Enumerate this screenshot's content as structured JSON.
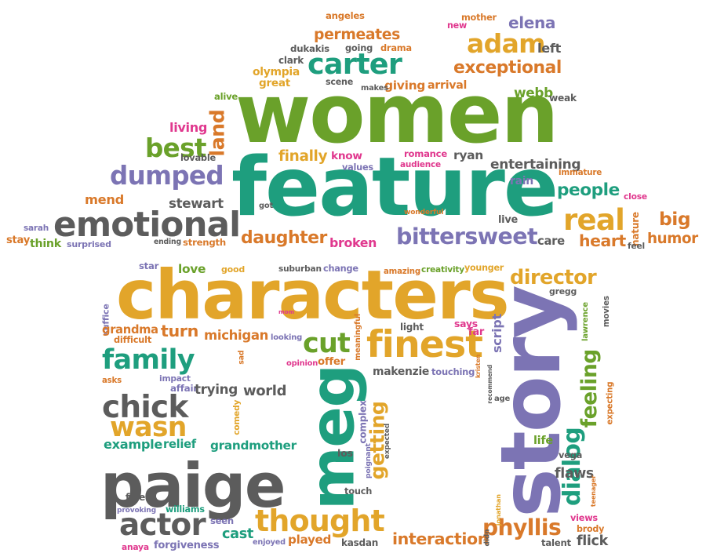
{
  "palette": {
    "green": "#6aa12a",
    "orange": "#d9792a",
    "yellow": "#e2a52a",
    "teal": "#1e9e7e",
    "gray": "#5c5c5c",
    "purple": "#7c74b4",
    "pink": "#e0388e"
  },
  "words": [
    {
      "text": "women",
      "c": "green"
    },
    {
      "text": "feature",
      "c": "teal"
    },
    {
      "text": "characters",
      "c": "yellow"
    },
    {
      "text": "paige",
      "c": "gray"
    },
    {
      "text": "story",
      "c": "purple"
    },
    {
      "text": "meg",
      "c": "teal"
    },
    {
      "text": "emotional",
      "c": "gray"
    },
    {
      "text": "carter",
      "c": "teal"
    },
    {
      "text": "adam",
      "c": "yellow"
    },
    {
      "text": "exceptional",
      "c": "orange"
    },
    {
      "text": "dumped",
      "c": "purple"
    },
    {
      "text": "best",
      "c": "green"
    },
    {
      "text": "land",
      "c": "orange"
    },
    {
      "text": "real",
      "c": "yellow"
    },
    {
      "text": "finest",
      "c": "yellow"
    },
    {
      "text": "thought",
      "c": "yellow"
    },
    {
      "text": "family",
      "c": "teal"
    },
    {
      "text": "chick",
      "c": "gray"
    },
    {
      "text": "wasn",
      "c": "yellow"
    },
    {
      "text": "actor",
      "c": "gray"
    },
    {
      "text": "cut",
      "c": "green"
    },
    {
      "text": "director",
      "c": "yellow"
    },
    {
      "text": "feeling",
      "c": "green"
    },
    {
      "text": "getting",
      "c": "yellow"
    },
    {
      "text": "bittersweet",
      "c": "purple"
    },
    {
      "text": "daughter",
      "c": "orange"
    },
    {
      "text": "people",
      "c": "teal"
    },
    {
      "text": "entertaining",
      "c": "gray"
    },
    {
      "text": "permeates",
      "c": "orange"
    },
    {
      "text": "phyllis",
      "c": "orange"
    },
    {
      "text": "interaction",
      "c": "orange"
    },
    {
      "text": "dialog",
      "c": "teal"
    },
    {
      "text": "heart",
      "c": "orange"
    },
    {
      "text": "humor",
      "c": "orange"
    },
    {
      "text": "mend",
      "c": "orange"
    },
    {
      "text": "big",
      "c": "orange"
    },
    {
      "text": "finally",
      "c": "yellow"
    },
    {
      "text": "broken",
      "c": "pink"
    },
    {
      "text": "stewart",
      "c": "gray"
    },
    {
      "text": "webb",
      "c": "green"
    },
    {
      "text": "giving",
      "c": "orange"
    },
    {
      "text": "arrival",
      "c": "orange"
    },
    {
      "text": "elena",
      "c": "purple"
    },
    {
      "text": "mother",
      "c": "orange"
    },
    {
      "text": "angeles",
      "c": "orange"
    },
    {
      "text": "new",
      "c": "pink"
    },
    {
      "text": "left",
      "c": "gray"
    },
    {
      "text": "dukakis",
      "c": "gray"
    },
    {
      "text": "going",
      "c": "gray"
    },
    {
      "text": "drama",
      "c": "orange"
    },
    {
      "text": "clark",
      "c": "gray"
    },
    {
      "text": "olympia",
      "c": "yellow"
    },
    {
      "text": "great",
      "c": "yellow"
    },
    {
      "text": "scene",
      "c": "gray"
    },
    {
      "text": "makes",
      "c": "gray"
    },
    {
      "text": "alive",
      "c": "green"
    },
    {
      "text": "weak",
      "c": "gray"
    },
    {
      "text": "living",
      "c": "pink"
    },
    {
      "text": "know",
      "c": "pink"
    },
    {
      "text": "romance",
      "c": "pink"
    },
    {
      "text": "ryan",
      "c": "gray"
    },
    {
      "text": "lovable",
      "c": "gray"
    },
    {
      "text": "values",
      "c": "purple"
    },
    {
      "text": "audience",
      "c": "pink"
    },
    {
      "text": "rain",
      "c": "purple"
    },
    {
      "text": "immature",
      "c": "orange"
    },
    {
      "text": "close",
      "c": "pink"
    },
    {
      "text": "sarah",
      "c": "purple"
    },
    {
      "text": "got",
      "c": "gray"
    },
    {
      "text": "wonderful",
      "c": "orange"
    },
    {
      "text": "live",
      "c": "gray"
    },
    {
      "text": "nature",
      "c": "orange"
    },
    {
      "text": "stay",
      "c": "orange"
    },
    {
      "text": "think",
      "c": "green"
    },
    {
      "text": "surprised",
      "c": "purple"
    },
    {
      "text": "ending",
      "c": "gray"
    },
    {
      "text": "strength",
      "c": "orange"
    },
    {
      "text": "care",
      "c": "gray"
    },
    {
      "text": "feel",
      "c": "gray"
    },
    {
      "text": "star",
      "c": "purple"
    },
    {
      "text": "love",
      "c": "green"
    },
    {
      "text": "good",
      "c": "yellow"
    },
    {
      "text": "suburban",
      "c": "gray"
    },
    {
      "text": "change",
      "c": "purple"
    },
    {
      "text": "amazing",
      "c": "orange"
    },
    {
      "text": "creativity",
      "c": "green"
    },
    {
      "text": "younger",
      "c": "yellow"
    },
    {
      "text": "gregg",
      "c": "gray"
    },
    {
      "text": "suffice",
      "c": "purple"
    },
    {
      "text": "mom",
      "c": "pink"
    },
    {
      "text": "grandma",
      "c": "orange"
    },
    {
      "text": "turn",
      "c": "orange"
    },
    {
      "text": "michigan",
      "c": "orange"
    },
    {
      "text": "light",
      "c": "gray"
    },
    {
      "text": "says",
      "c": "pink"
    },
    {
      "text": "far",
      "c": "pink"
    },
    {
      "text": "movies",
      "c": "gray"
    },
    {
      "text": "lawrence",
      "c": "green"
    },
    {
      "text": "difficult",
      "c": "orange"
    },
    {
      "text": "looking",
      "c": "purple"
    },
    {
      "text": "meaningful",
      "c": "orange"
    },
    {
      "text": "script",
      "c": "purple"
    },
    {
      "text": "kristen",
      "c": "orange"
    },
    {
      "text": "sad",
      "c": "orange"
    },
    {
      "text": "opinion",
      "c": "pink"
    },
    {
      "text": "offer",
      "c": "orange"
    },
    {
      "text": "makenzie",
      "c": "gray"
    },
    {
      "text": "touching",
      "c": "purple"
    },
    {
      "text": "recommend",
      "c": "gray"
    },
    {
      "text": "asks",
      "c": "orange"
    },
    {
      "text": "impact",
      "c": "purple"
    },
    {
      "text": "affair",
      "c": "purple"
    },
    {
      "text": "trying",
      "c": "gray"
    },
    {
      "text": "world",
      "c": "gray"
    },
    {
      "text": "age",
      "c": "gray"
    },
    {
      "text": "expecting",
      "c": "orange"
    },
    {
      "text": "comedy",
      "c": "yellow"
    },
    {
      "text": "complex",
      "c": "purple"
    },
    {
      "text": "expected",
      "c": "gray"
    },
    {
      "text": "example",
      "c": "teal"
    },
    {
      "text": "relief",
      "c": "teal"
    },
    {
      "text": "grandmother",
      "c": "teal"
    },
    {
      "text": "vega",
      "c": "gray"
    },
    {
      "text": "life",
      "c": "green"
    },
    {
      "text": "los",
      "c": "gray"
    },
    {
      "text": "poignant",
      "c": "purple"
    },
    {
      "text": "flaws",
      "c": "gray"
    },
    {
      "text": "teenager",
      "c": "orange"
    },
    {
      "text": "touch",
      "c": "gray"
    },
    {
      "text": "jonathan",
      "c": "yellow"
    },
    {
      "text": "fine",
      "c": "gray"
    },
    {
      "text": "provoking",
      "c": "purple"
    },
    {
      "text": "williams",
      "c": "teal"
    },
    {
      "text": "views",
      "c": "pink"
    },
    {
      "text": "seen",
      "c": "purple"
    },
    {
      "text": "cast",
      "c": "teal"
    },
    {
      "text": "enjoyed",
      "c": "purple"
    },
    {
      "text": "played",
      "c": "orange"
    },
    {
      "text": "kasdan",
      "c": "gray"
    },
    {
      "text": "didn",
      "c": "gray"
    },
    {
      "text": "brody",
      "c": "orange"
    },
    {
      "text": "anaya",
      "c": "pink"
    },
    {
      "text": "forgiveness",
      "c": "purple"
    },
    {
      "text": "talent",
      "c": "gray"
    },
    {
      "text": "flick",
      "c": "gray"
    }
  ]
}
